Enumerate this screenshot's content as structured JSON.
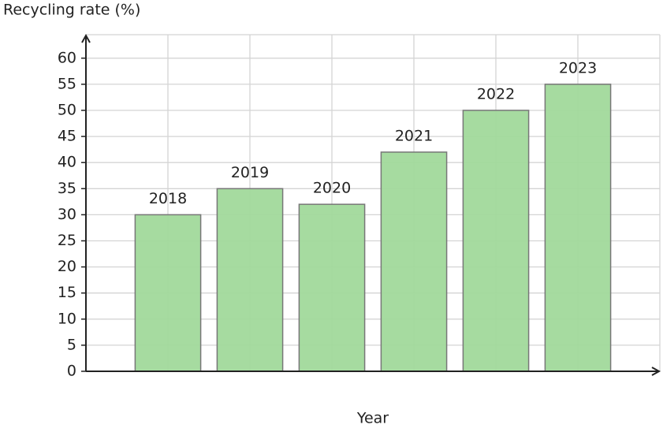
{
  "chart_data": {
    "type": "bar",
    "y_label": "Recycling rate (%)",
    "x_label": "Year",
    "categories": [
      "2018",
      "2019",
      "2020",
      "2021",
      "2022",
      "2023"
    ],
    "values": [
      30,
      35,
      32,
      42,
      50,
      55
    ],
    "color": "#a1d99b",
    "ylim": [
      0,
      64.5
    ],
    "yticks": [
      0,
      5,
      10,
      15,
      20,
      25,
      30,
      35,
      40,
      45,
      50,
      55,
      60
    ],
    "grid": true
  }
}
